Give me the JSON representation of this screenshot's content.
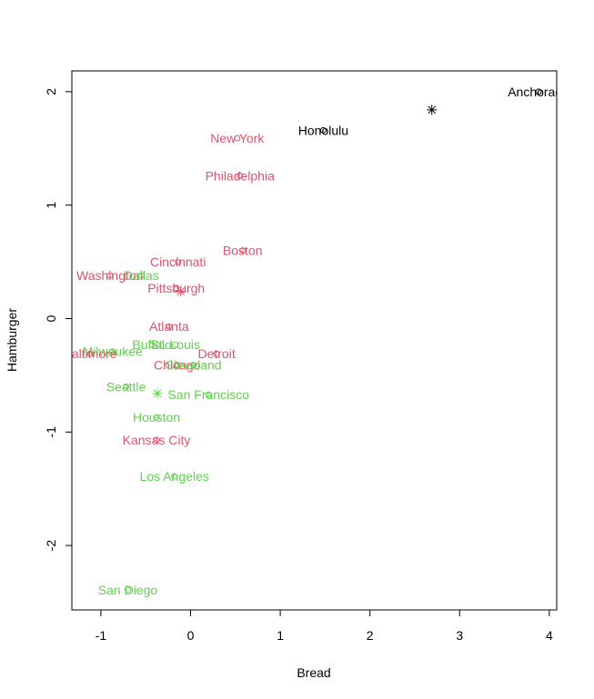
{
  "chart_data": {
    "type": "scatter",
    "title": "",
    "xlabel": "Bread",
    "ylabel": "Hamburger",
    "xlim": [
      -1.35,
      4.1
    ],
    "ylim": [
      -2.56,
      2.2
    ],
    "xticks": [
      -1,
      0,
      1,
      2,
      3,
      4
    ],
    "yticks": [
      -2,
      -1,
      0,
      1,
      2
    ],
    "colors": {
      "group1": "#000000",
      "group2": "#df536b",
      "group3": "#61d04f"
    },
    "points": [
      {
        "label": "Anchorage",
        "x": 3.88,
        "y": 2.0,
        "group": "group1"
      },
      {
        "label": "Honolulu",
        "x": 1.48,
        "y": 1.66,
        "group": "group1"
      },
      {
        "label": "New York",
        "x": 0.52,
        "y": 1.59,
        "group": "group2"
      },
      {
        "label": "Philadelphia",
        "x": 0.55,
        "y": 1.26,
        "group": "group2"
      },
      {
        "label": "Boston",
        "x": 0.58,
        "y": 0.6,
        "group": "group2"
      },
      {
        "label": "Cincinnati",
        "x": -0.14,
        "y": 0.5,
        "group": "group2"
      },
      {
        "label": "Washington",
        "x": -0.9,
        "y": 0.38,
        "group": "group2"
      },
      {
        "label": "Dallas",
        "x": -0.55,
        "y": 0.38,
        "group": "group3"
      },
      {
        "label": "Pittsburgh",
        "x": -0.16,
        "y": 0.27,
        "group": "group2"
      },
      {
        "label": "Atlanta",
        "x": -0.24,
        "y": -0.07,
        "group": "group2"
      },
      {
        "label": "Buffalo",
        "x": -0.43,
        "y": -0.23,
        "group": "group3"
      },
      {
        "label": "St. Louis",
        "x": -0.17,
        "y": -0.23,
        "group": "group3"
      },
      {
        "label": "Milwaukee",
        "x": -0.87,
        "y": -0.29,
        "group": "group3"
      },
      {
        "label": "Baltimore",
        "x": -1.12,
        "y": -0.31,
        "group": "group2"
      },
      {
        "label": "Detroit",
        "x": 0.29,
        "y": -0.31,
        "group": "group2"
      },
      {
        "label": "Chicago",
        "x": -0.15,
        "y": -0.41,
        "group": "group2"
      },
      {
        "label": "Cleveland",
        "x": 0.03,
        "y": -0.41,
        "group": "group3"
      },
      {
        "label": "Seattle",
        "x": -0.72,
        "y": -0.6,
        "group": "group3"
      },
      {
        "label": "San Francisco",
        "x": 0.2,
        "y": -0.67,
        "group": "group3"
      },
      {
        "label": "Houston",
        "x": -0.38,
        "y": -0.87,
        "group": "group3"
      },
      {
        "label": "Kansas City",
        "x": -0.38,
        "y": -1.07,
        "group": "group2"
      },
      {
        "label": "Los Angeles",
        "x": -0.18,
        "y": -1.39,
        "group": "group3"
      },
      {
        "label": "San Diego",
        "x": -0.7,
        "y": -2.39,
        "group": "group3"
      }
    ],
    "centers": [
      {
        "x": 2.69,
        "y": 1.84,
        "group": "group1"
      },
      {
        "x": -0.11,
        "y": 0.24,
        "group": "group2"
      },
      {
        "x": -0.37,
        "y": -0.66,
        "group": "group3"
      }
    ]
  }
}
